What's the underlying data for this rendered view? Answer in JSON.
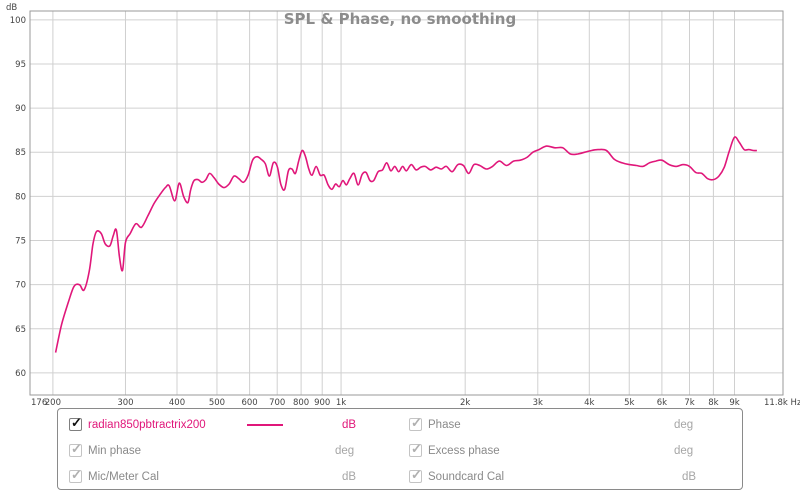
{
  "colors": {
    "trace": "#e0177a",
    "grid": "#d0d0d0",
    "axis_text": "#444444",
    "disabled_text": "#a6a6a6",
    "title": "#8c8c8c"
  },
  "chart_data": {
    "type": "line",
    "title": "SPL & Phase, no smoothing",
    "ylabel": "dB",
    "xlabel": "",
    "x_scale": "log",
    "xlim": [
      176,
      11800
    ],
    "ylim": [
      57.5,
      101
    ],
    "grid": true,
    "x_ticks": [
      {
        "v": 176,
        "label": "176"
      },
      {
        "v": 200,
        "label": "200"
      },
      {
        "v": 300,
        "label": "300"
      },
      {
        "v": 400,
        "label": "400"
      },
      {
        "v": 500,
        "label": "500"
      },
      {
        "v": 600,
        "label": "600"
      },
      {
        "v": 700,
        "label": "700"
      },
      {
        "v": 800,
        "label": "800"
      },
      {
        "v": 900,
        "label": "900"
      },
      {
        "v": 1000,
        "label": "1k"
      },
      {
        "v": 2000,
        "label": "2k"
      },
      {
        "v": 3000,
        "label": "3k"
      },
      {
        "v": 4000,
        "label": "4k"
      },
      {
        "v": 5000,
        "label": "5k"
      },
      {
        "v": 6000,
        "label": "6k"
      },
      {
        "v": 7000,
        "label": "7k"
      },
      {
        "v": 8000,
        "label": "8k"
      },
      {
        "v": 9000,
        "label": "9k"
      },
      {
        "v": 11800,
        "label": "11.8k Hz"
      }
    ],
    "y_ticks": [
      {
        "v": 100,
        "label": "100"
      },
      {
        "v": 95,
        "label": "95"
      },
      {
        "v": 90,
        "label": "90"
      },
      {
        "v": 85,
        "label": "85"
      },
      {
        "v": 80,
        "label": "80"
      },
      {
        "v": 75,
        "label": "75"
      },
      {
        "v": 70,
        "label": "70"
      },
      {
        "v": 65,
        "label": "65"
      },
      {
        "v": 60,
        "label": "60"
      }
    ],
    "series": [
      {
        "name": "radian850pbtractrix200",
        "x": [
          203,
          210,
          218,
          225,
          232,
          238,
          245,
          250,
          255,
          262,
          268,
          275,
          280,
          285,
          290,
          295,
          300,
          308,
          318,
          328,
          340,
          352,
          365,
          375,
          383,
          395,
          405,
          415,
          425,
          432,
          440,
          450,
          460,
          470,
          480,
          492,
          505,
          520,
          535,
          550,
          565,
          580,
          595,
          610,
          625,
          640,
          655,
          670,
          685,
          700,
          715,
          730,
          745,
          760,
          775,
          790,
          805,
          820,
          835,
          850,
          870,
          890,
          910,
          930,
          950,
          970,
          990,
          1010,
          1030,
          1050,
          1075,
          1100,
          1125,
          1150,
          1175,
          1200,
          1230,
          1260,
          1290,
          1320,
          1350,
          1380,
          1410,
          1440,
          1480,
          1520,
          1560,
          1600,
          1650,
          1700,
          1750,
          1800,
          1860,
          1920,
          1980,
          2040,
          2100,
          2170,
          2250,
          2330,
          2420,
          2520,
          2620,
          2720,
          2820,
          2920,
          3020,
          3150,
          3300,
          3450,
          3600,
          3750,
          3900,
          4050,
          4200,
          4400,
          4600,
          4800,
          5000,
          5200,
          5400,
          5600,
          5800,
          6000,
          6250,
          6500,
          6750,
          7000,
          7250,
          7500,
          7750,
          8000,
          8250,
          8500,
          8750,
          9000,
          9250,
          9500,
          9750,
          10000,
          10200
        ],
        "values": [
          62.3,
          65.5,
          68.0,
          69.8,
          70.0,
          69.4,
          71.5,
          74.5,
          76.0,
          75.8,
          74.6,
          74.4,
          75.5,
          76.2,
          73.2,
          71.6,
          74.8,
          75.8,
          76.9,
          76.5,
          77.8,
          79.2,
          80.3,
          81.0,
          81.2,
          79.5,
          81.5,
          80.0,
          79.3,
          80.8,
          81.8,
          81.9,
          81.6,
          81.9,
          82.6,
          82.1,
          81.4,
          81.0,
          81.4,
          82.3,
          82.0,
          81.6,
          82.4,
          84.1,
          84.5,
          84.2,
          83.7,
          82.3,
          83.8,
          83.4,
          81.3,
          80.8,
          82.9,
          83.1,
          82.6,
          84.1,
          85.2,
          84.5,
          83.1,
          82.4,
          83.4,
          82.4,
          82.4,
          81.3,
          80.8,
          81.4,
          81.1,
          81.8,
          81.3,
          82.0,
          82.6,
          81.3,
          82.5,
          82.7,
          81.8,
          81.8,
          82.8,
          83.0,
          83.8,
          82.9,
          83.4,
          82.8,
          83.4,
          82.9,
          83.6,
          83.0,
          83.3,
          83.4,
          83.0,
          83.3,
          83.1,
          83.4,
          82.8,
          83.6,
          83.5,
          82.6,
          83.6,
          83.5,
          83.1,
          83.4,
          84.0,
          83.5,
          84.0,
          84.1,
          84.4,
          85.0,
          85.3,
          85.7,
          85.5,
          85.5,
          84.8,
          84.8,
          85.0,
          85.2,
          85.3,
          85.2,
          84.2,
          83.8,
          83.6,
          83.5,
          83.4,
          83.8,
          84.0,
          84.1,
          83.6,
          83.4,
          83.6,
          83.4,
          82.7,
          82.6,
          82.0,
          81.9,
          82.3,
          83.3,
          85.2,
          86.7,
          86.1,
          85.3,
          85.3,
          85.2,
          85.2
        ]
      }
    ]
  },
  "legend": {
    "items": [
      {
        "label": "radian850pbtractrix200",
        "unit": "dB",
        "checked": true,
        "enabled": true
      },
      {
        "label": "Phase",
        "unit": "deg",
        "checked": true,
        "enabled": false
      },
      {
        "label": "Min phase",
        "unit": "deg",
        "checked": true,
        "enabled": false
      },
      {
        "label": "Excess phase",
        "unit": "deg",
        "checked": true,
        "enabled": false
      },
      {
        "label": "Mic/Meter Cal",
        "unit": "dB",
        "checked": true,
        "enabled": false
      },
      {
        "label": "Soundcard Cal",
        "unit": "dB",
        "checked": true,
        "enabled": false
      }
    ]
  }
}
